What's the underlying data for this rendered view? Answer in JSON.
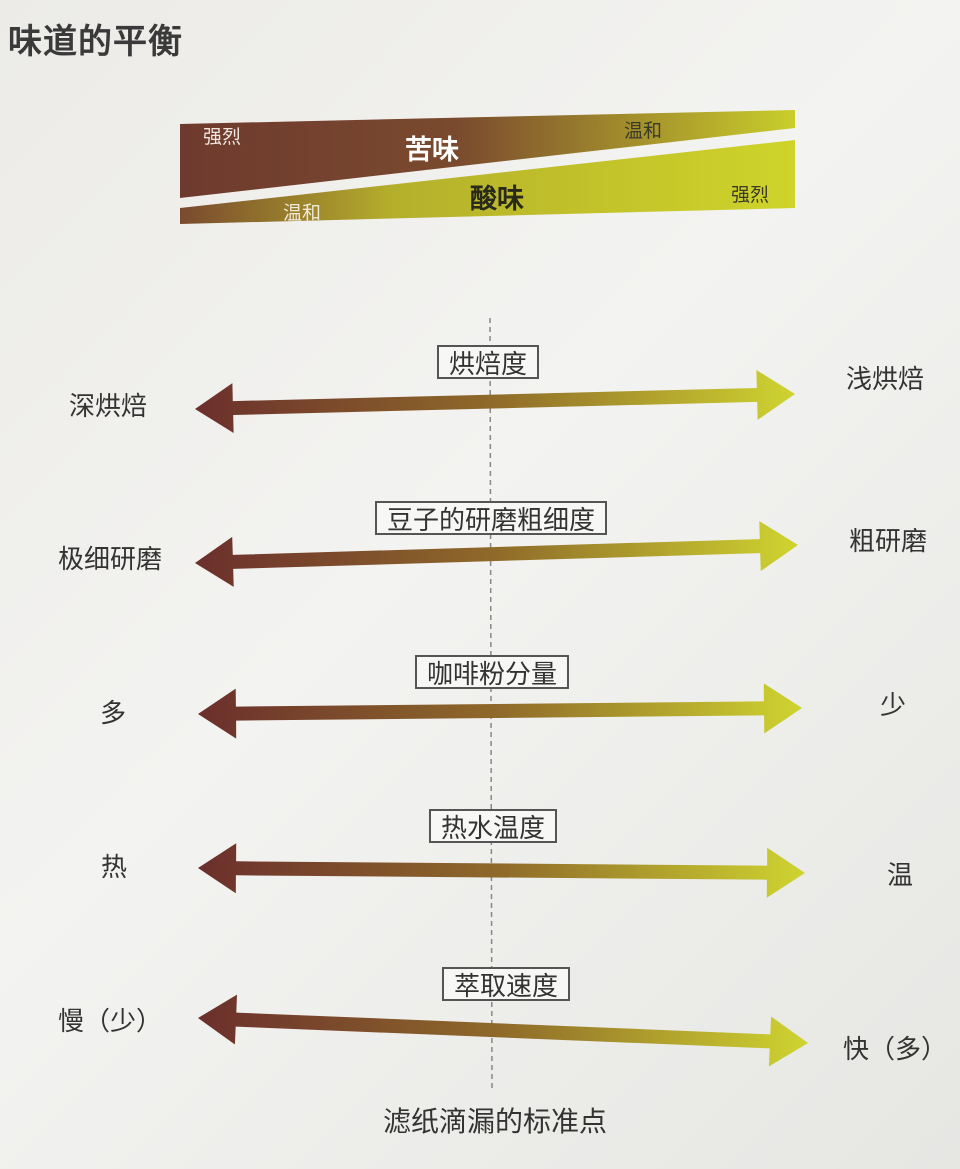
{
  "title": "味道的平衡",
  "taste_balance": {
    "bitter": {
      "label": "苦味",
      "left_intensity": "强烈",
      "right_intensity": "温和"
    },
    "sour": {
      "label": "酸味",
      "left_intensity": "温和",
      "right_intensity": "强烈"
    },
    "colors": {
      "dark": "#6e3a2e",
      "light": "#c9ce2b"
    }
  },
  "axes": [
    {
      "name": "烘焙度",
      "left": "深烘焙",
      "right": "浅烘焙"
    },
    {
      "name": "豆子的研磨粗细度",
      "left": "极细研磨",
      "right": "粗研磨"
    },
    {
      "name": "咖啡粉分量",
      "left": "多",
      "right": "少"
    },
    {
      "name": "热水温度",
      "left": "热",
      "right": "温"
    },
    {
      "name": "萃取速度",
      "left": "慢（少）",
      "right": "快（多）"
    }
  ],
  "footer": "滤纸滴漏的标准点"
}
